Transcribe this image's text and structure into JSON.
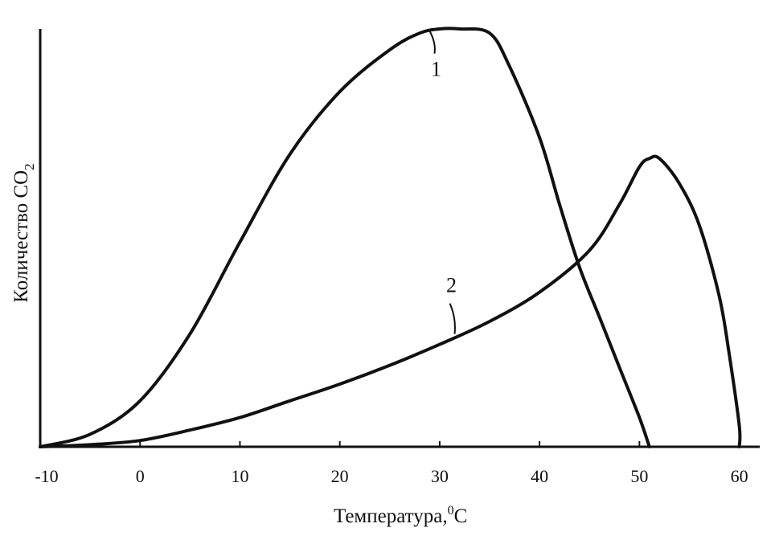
{
  "chart_data": {
    "type": "line",
    "xlabel": "Температура,",
    "xlabel_sup": "0",
    "xlabel_unit": "C",
    "ylabel": "Количество CO",
    "ylabel_sub": "2",
    "xlim": [
      -10,
      61
    ],
    "ylim": [
      0,
      100
    ],
    "x_ticks": [
      -10,
      0,
      10,
      20,
      30,
      40,
      50,
      60
    ],
    "grid": false,
    "series": [
      {
        "name": "1",
        "x": [
          -10,
          -5,
          0,
          5,
          10,
          15,
          20,
          25,
          28,
          30,
          32,
          35,
          37,
          40,
          42,
          44,
          46,
          48,
          50,
          51
        ],
        "y": [
          0,
          3,
          11,
          27,
          49,
          70,
          85,
          95,
          99,
          100,
          100,
          99,
          91,
          74,
          58,
          43,
          31,
          19,
          7,
          0
        ]
      },
      {
        "name": "2",
        "x": [
          -10,
          -5,
          0,
          5,
          10,
          15,
          20,
          25,
          30,
          35,
          40,
          45,
          48,
          50,
          51,
          52,
          54,
          56,
          58,
          59,
          60,
          60
        ],
        "y": [
          0,
          0.5,
          1.5,
          4,
          7,
          11,
          15,
          19.5,
          24.5,
          30,
          37,
          47,
          58,
          67,
          69,
          69,
          63,
          53,
          36,
          22,
          5,
          0
        ]
      }
    ]
  }
}
